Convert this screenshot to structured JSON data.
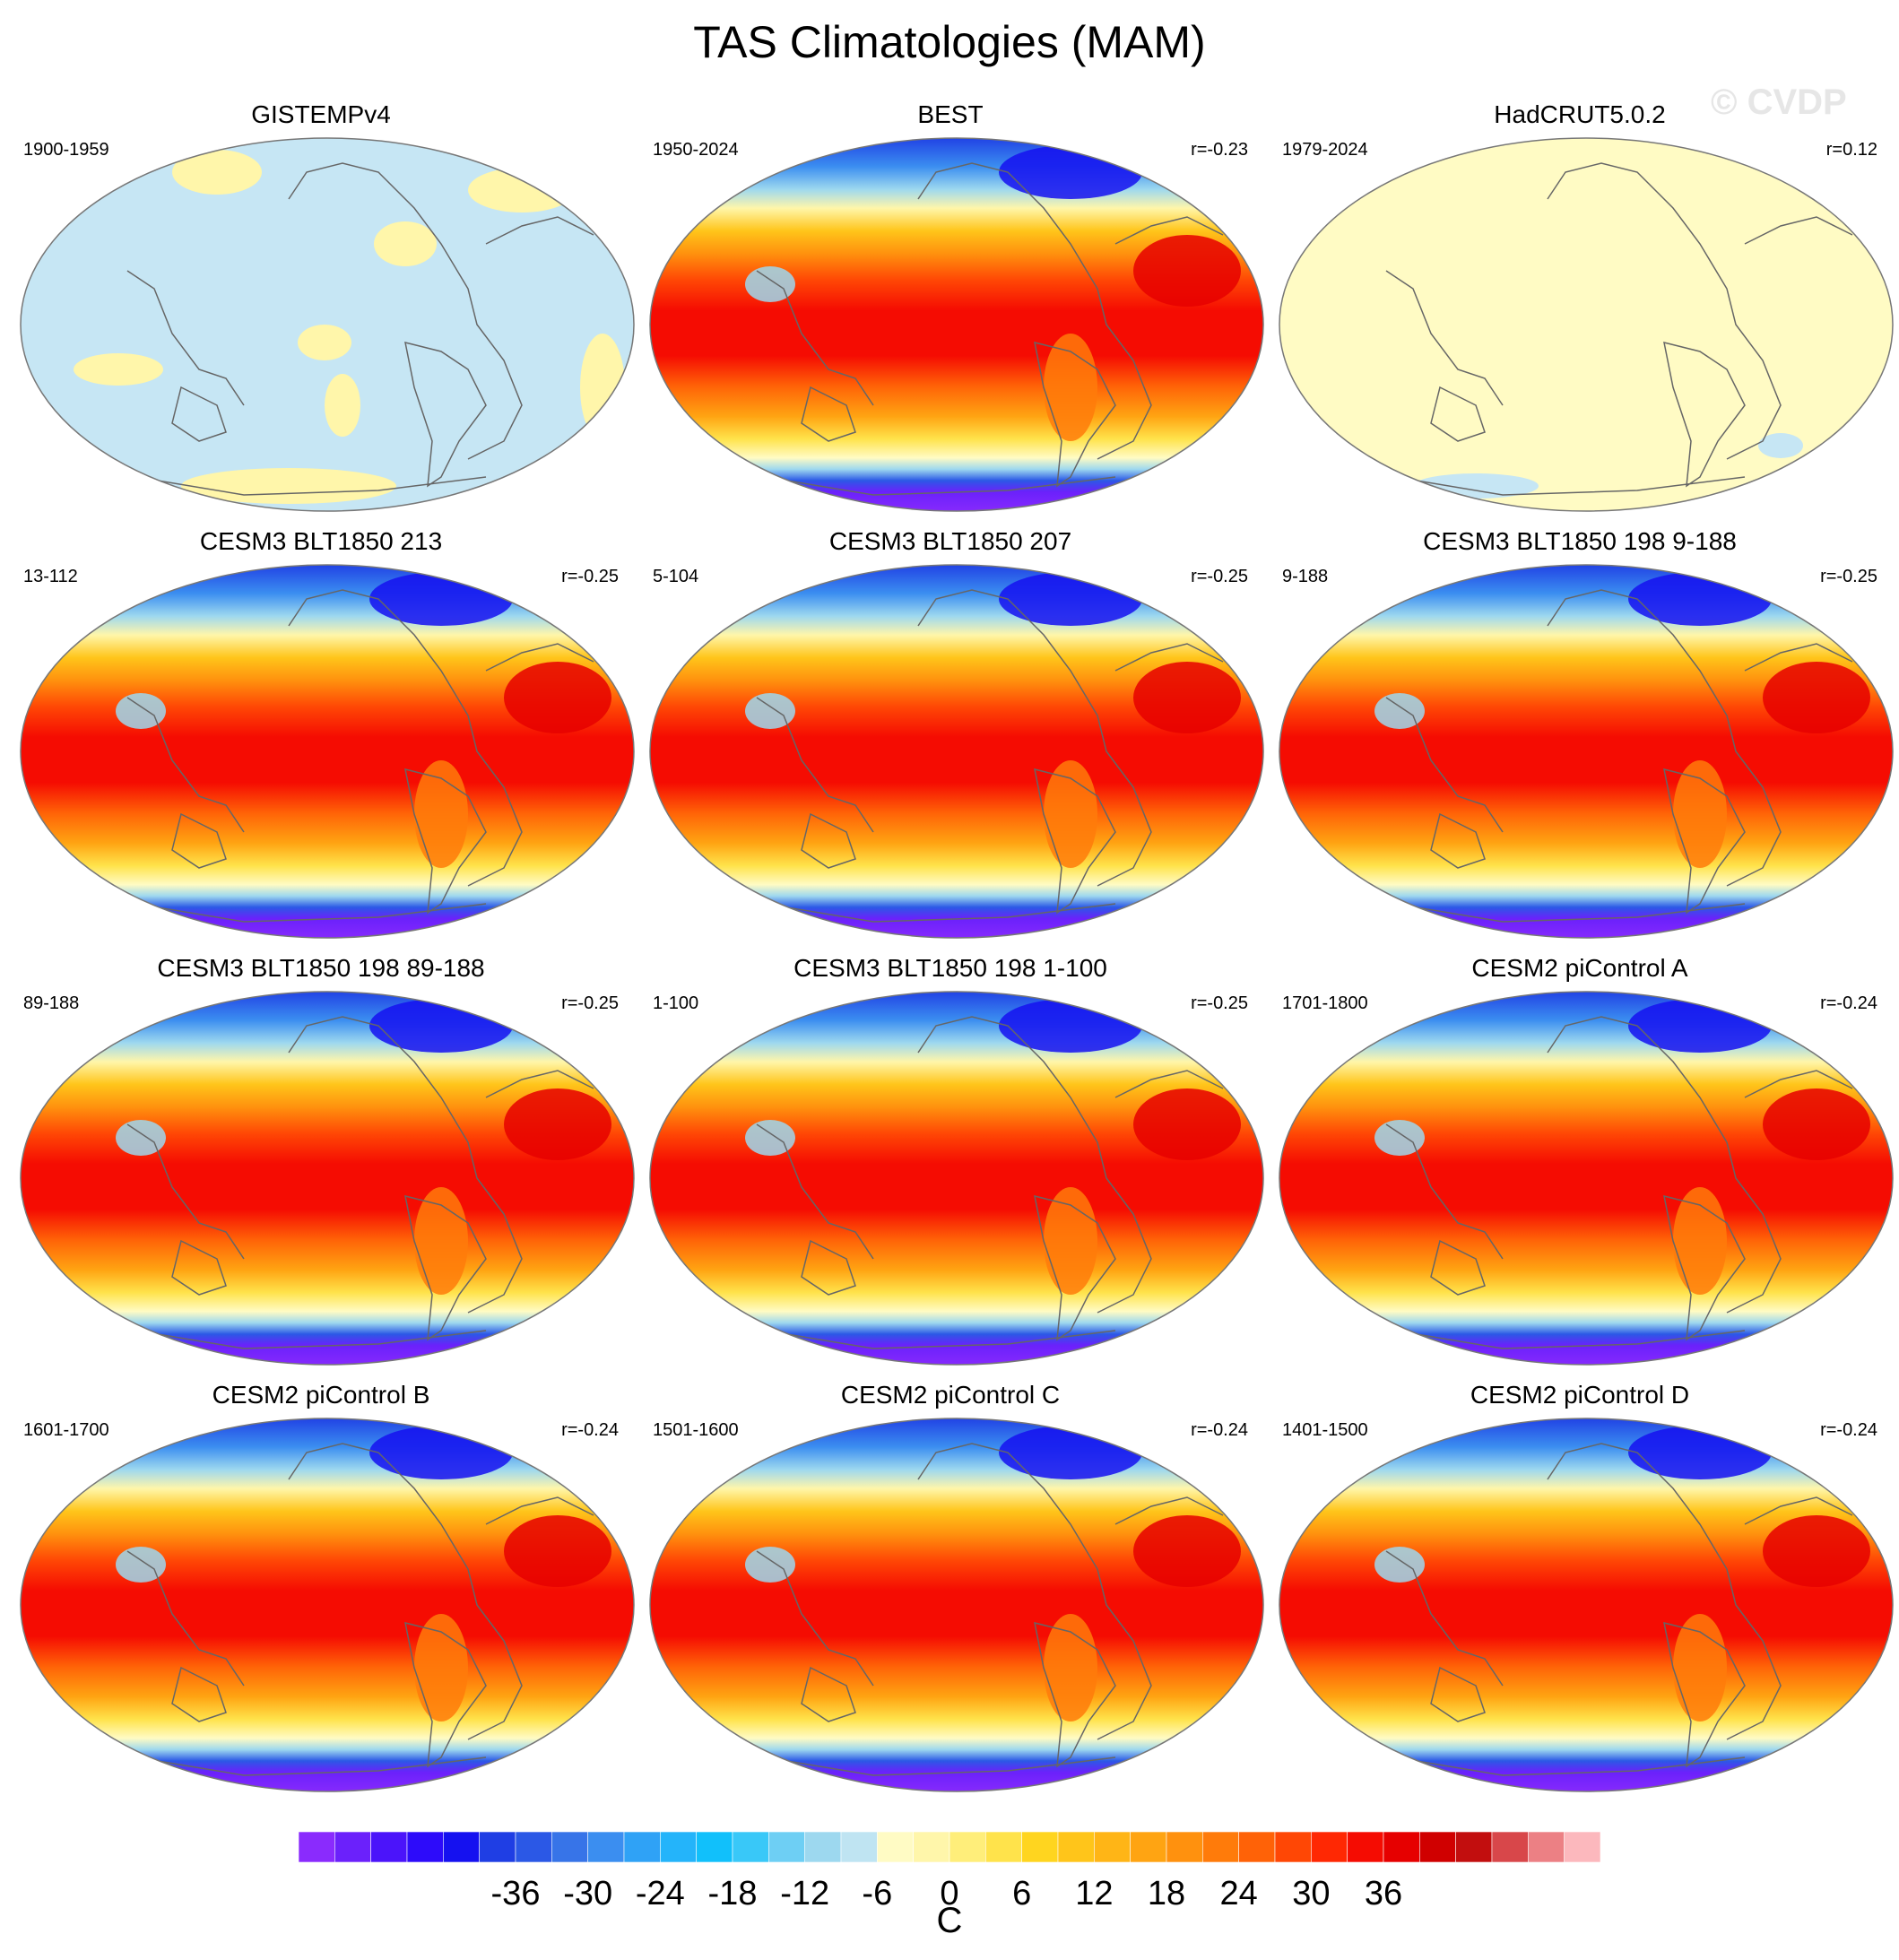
{
  "title": "TAS Climatologies (MAM)",
  "watermark": "© CVDP",
  "colorbar": {
    "unit": "C",
    "ticks": [
      "-36",
      "-30",
      "-24",
      "-18",
      "-12",
      "-6",
      "0",
      "6",
      "12",
      "18",
      "24",
      "30",
      "36"
    ],
    "colors": [
      "#8a2bfd",
      "#6b21fb",
      "#4b14fa",
      "#2d0bfa",
      "#1511f0",
      "#1f3ee4",
      "#2b58e6",
      "#3774e8",
      "#3b8ef0",
      "#2fa2f6",
      "#24b4fa",
      "#11c0fb",
      "#39c8f8",
      "#6ecff4",
      "#9dd8ef",
      "#bfe4f2",
      "#fffbc4",
      "#fff6aa",
      "#ffee7a",
      "#ffe34b",
      "#ffd51f",
      "#ffc51a",
      "#ffb516",
      "#ffa412",
      "#ff910e",
      "#ff7b0a",
      "#ff6207",
      "#ff4705",
      "#ff2803",
      "#f50c02",
      "#e60000",
      "#d00000",
      "#c20e0e",
      "#d8474a",
      "#ec8084",
      "#fcb8bd"
    ]
  },
  "panels": [
    {
      "title": "GISTEMPv4",
      "period": "1900-1959",
      "corr": "",
      "style": "anom"
    },
    {
      "title": "BEST",
      "period": "1950-2024",
      "corr": "r=-0.23",
      "style": "clim"
    },
    {
      "title": "HadCRUT5.0.2",
      "period": "1979-2024",
      "corr": "r=0.12",
      "style": "flat"
    },
    {
      "title": "CESM3 BLT1850 213",
      "period": "13-112",
      "corr": "r=-0.25",
      "style": "clim"
    },
    {
      "title": "CESM3 BLT1850 207",
      "period": "5-104",
      "corr": "r=-0.25",
      "style": "clim"
    },
    {
      "title": "CESM3 BLT1850 198 9-188",
      "period": "9-188",
      "corr": "r=-0.25",
      "style": "clim"
    },
    {
      "title": "CESM3 BLT1850 198 89-188",
      "period": "89-188",
      "corr": "r=-0.25",
      "style": "clim"
    },
    {
      "title": "CESM3 BLT1850 198 1-100",
      "period": "1-100",
      "corr": "r=-0.25",
      "style": "clim"
    },
    {
      "title": "CESM2 piControl A",
      "period": "1701-1800",
      "corr": "r=-0.24",
      "style": "clim"
    },
    {
      "title": "CESM2 piControl B",
      "period": "1601-1700",
      "corr": "r=-0.24",
      "style": "clim"
    },
    {
      "title": "CESM2 piControl C",
      "period": "1501-1600",
      "corr": "r=-0.24",
      "style": "clim"
    },
    {
      "title": "CESM2 piControl D",
      "period": "1401-1500",
      "corr": "r=-0.24",
      "style": "clim"
    }
  ]
}
